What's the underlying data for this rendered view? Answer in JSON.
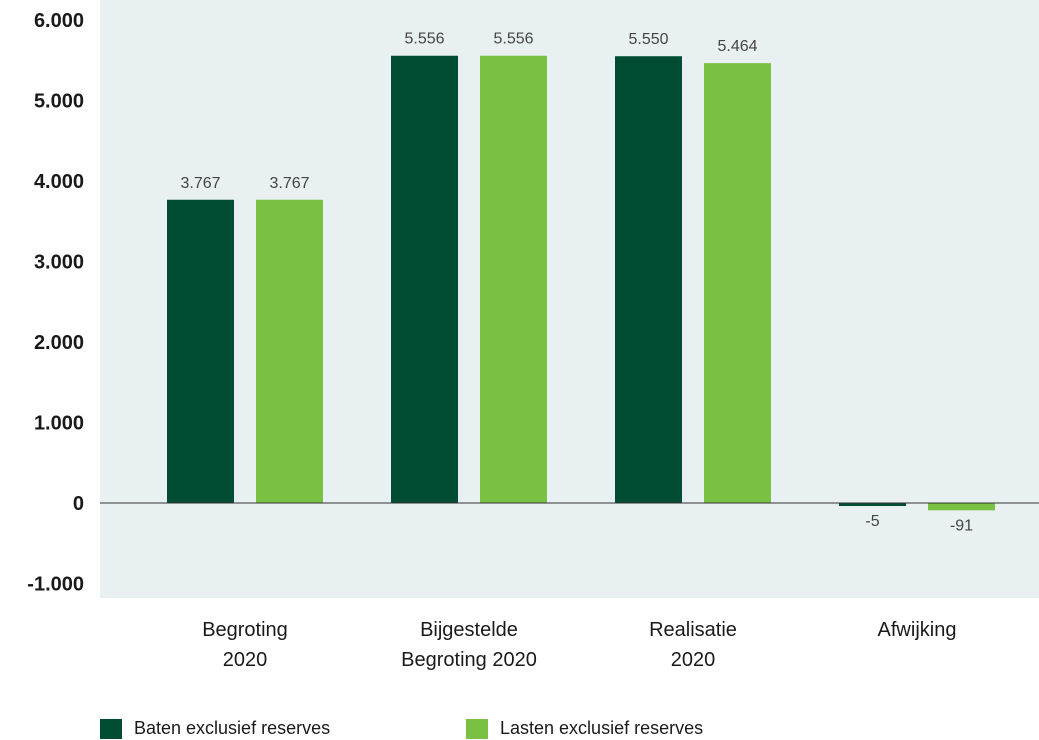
{
  "chart_data": {
    "type": "bar",
    "categories": [
      [
        "Begroting",
        "2020"
      ],
      [
        "Bijgestelde",
        "Begroting 2020"
      ],
      [
        "Realisatie",
        "2020"
      ],
      [
        "Afwijking"
      ]
    ],
    "series": [
      {
        "name": "Baten exclusief reserves",
        "values": [
          3767,
          5556,
          5550,
          -5
        ],
        "labels": [
          "3.767",
          "5.556",
          "5.550",
          "-5"
        ]
      },
      {
        "name": "Lasten exclusief reserves",
        "values": [
          3767,
          5556,
          5464,
          -91
        ],
        "labels": [
          "3.767",
          "5.556",
          "5.464",
          "-91"
        ]
      }
    ],
    "ylim": [
      -1000,
      6000
    ],
    "yticks": [
      6000,
      5000,
      4000,
      3000,
      2000,
      1000,
      0,
      -1000
    ],
    "ytick_labels": [
      "6.000",
      "5.000",
      "4.000",
      "3.000",
      "2.000",
      "1.000",
      "0",
      "-1.000"
    ],
    "legend_position": "bottom",
    "colors": {
      "baten": "#004d33",
      "lasten": "#7ac143",
      "plot_bg": "#e8f0f1",
      "zero_line": "#333333"
    }
  }
}
